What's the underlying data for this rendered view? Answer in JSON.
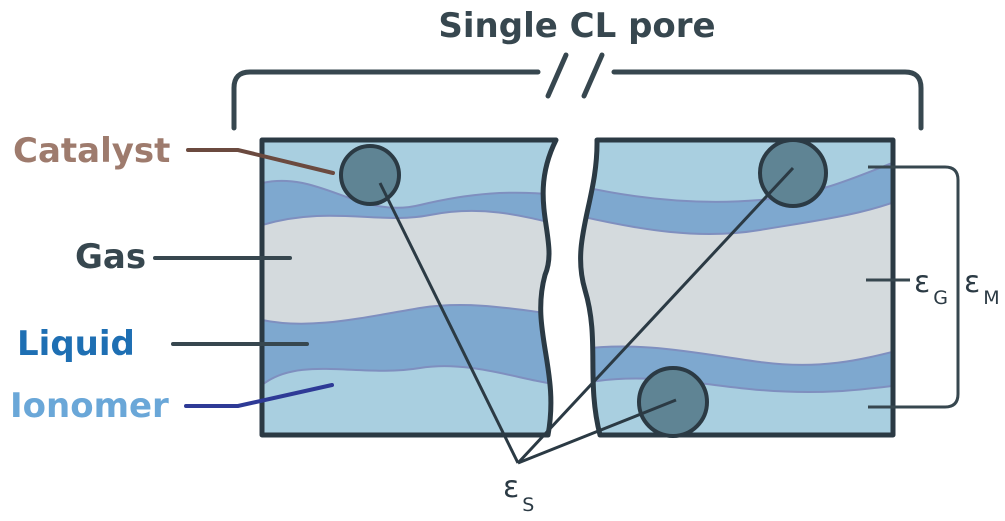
{
  "title": "Single CL pore",
  "labels": {
    "catalyst": "Catalyst",
    "gas": "Gas",
    "liquid": "Liquid",
    "ionomer": "Ionomer"
  },
  "symbols": {
    "eps": "ε",
    "gas_sub": "G",
    "mix_sub": "M",
    "solid_sub": "S"
  },
  "colors": {
    "title": "#37474f",
    "catalyst": "#9e7b6d",
    "gas": "#37474f",
    "liquid": "#1e6fb3",
    "ionomer": "#6aa7d8",
    "outline": "#2b3a44",
    "ionomer_fill": "#a9cfe0",
    "liquid_fill": "#7ea8cf",
    "gas_fill": "#d4dadd",
    "particle_fill": "#5f8494",
    "catalyst_leader": "#6b4a3f",
    "ionomer_leader": "#2e3a96"
  }
}
